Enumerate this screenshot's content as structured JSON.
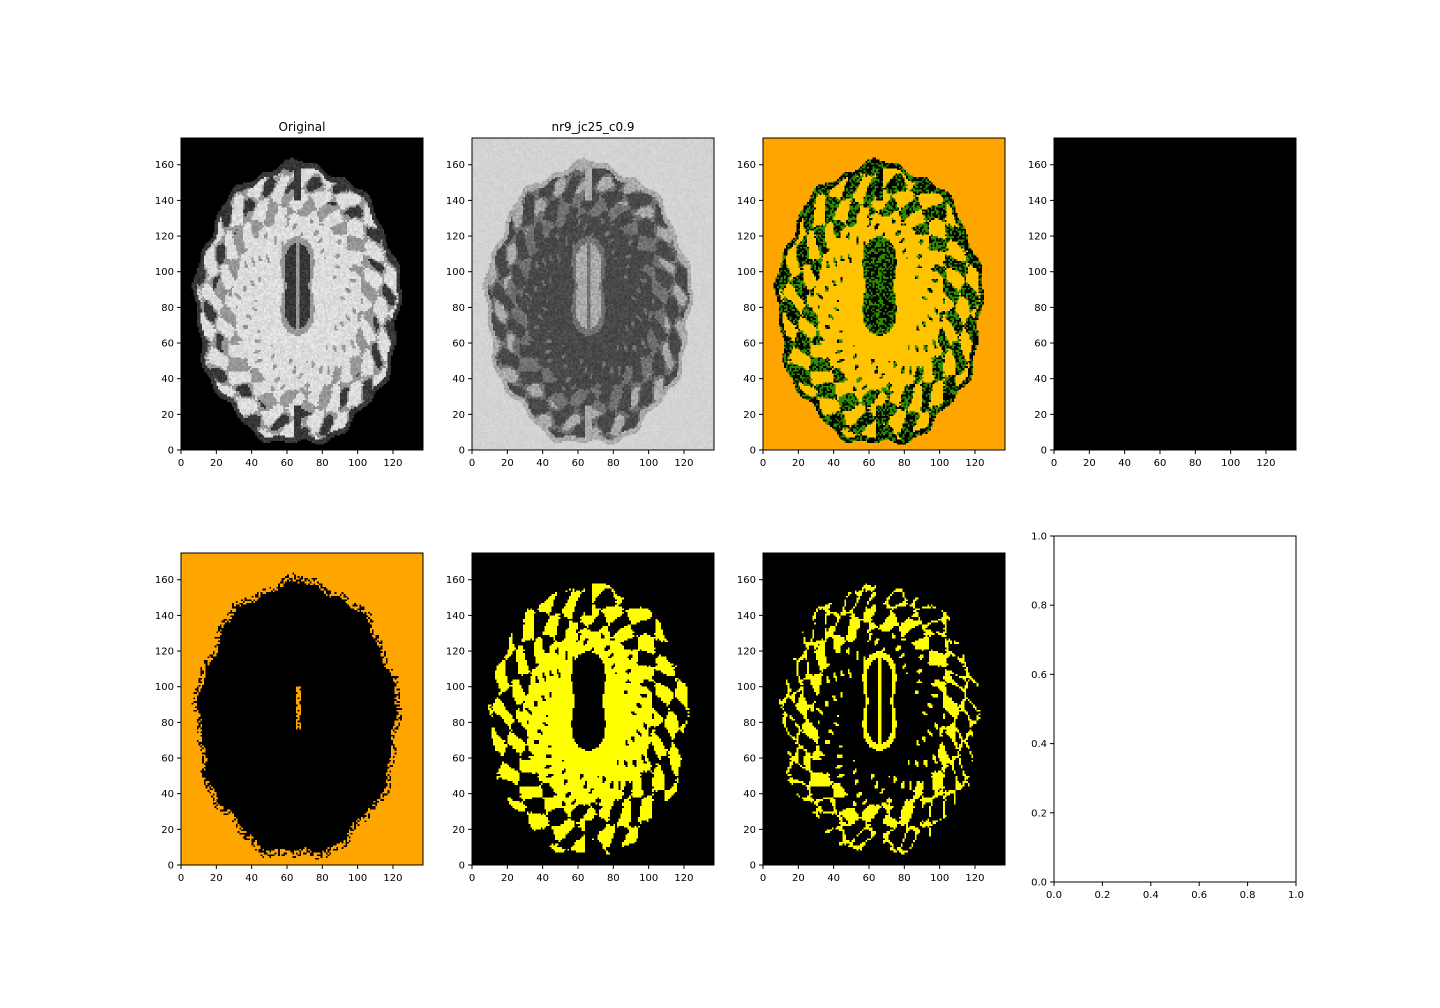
{
  "figure": {
    "background": "#ffffff"
  },
  "chart_data": [
    {
      "type": "heatmap",
      "title": "Original",
      "colormap": "gray",
      "content": "brain-t1",
      "xlim": [
        0,
        137
      ],
      "ylim": [
        0,
        175
      ],
      "xticks": [
        0,
        20,
        40,
        60,
        80,
        100,
        120
      ],
      "yticks": [
        0,
        20,
        40,
        60,
        80,
        100,
        120,
        140,
        160
      ]
    },
    {
      "type": "heatmap",
      "title": "nr9_jc25_c0.9",
      "colormap": "gray",
      "content": "bias-corrected",
      "xlim": [
        0,
        137
      ],
      "ylim": [
        0,
        175
      ],
      "xticks": [
        0,
        20,
        40,
        60,
        80,
        100,
        120
      ],
      "yticks": [
        0,
        20,
        40,
        60,
        80,
        100,
        120,
        140,
        160
      ]
    },
    {
      "type": "heatmap",
      "title": "",
      "colormap": "segmentation",
      "content": "segmentation",
      "colors": {
        "background": "#ffa500",
        "tissue": "#ffc300",
        "border": "#2e8b00",
        "dark": "#000000"
      },
      "xlim": [
        0,
        137
      ],
      "ylim": [
        0,
        175
      ],
      "xticks": [
        0,
        20,
        40,
        60,
        80,
        100,
        120
      ],
      "yticks": [
        0,
        20,
        40,
        60,
        80,
        100,
        120,
        140,
        160
      ]
    },
    {
      "type": "heatmap",
      "title": "",
      "colormap": "black",
      "content": "empty",
      "xlim": [
        0,
        137
      ],
      "ylim": [
        0,
        175
      ],
      "xticks": [
        0,
        20,
        40,
        60,
        80,
        100,
        120
      ],
      "yticks": [
        0,
        20,
        40,
        60,
        80,
        100,
        120,
        140,
        160
      ]
    },
    {
      "type": "heatmap",
      "title": "",
      "colormap": "orange-mask",
      "content": "csf-mask",
      "colors": {
        "on": "#ffa500",
        "off": "#000000"
      },
      "xlim": [
        0,
        137
      ],
      "ylim": [
        0,
        175
      ],
      "xticks": [
        0,
        20,
        40,
        60,
        80,
        100,
        120
      ],
      "yticks": [
        0,
        20,
        40,
        60,
        80,
        100,
        120,
        140,
        160
      ]
    },
    {
      "type": "heatmap",
      "title": "",
      "colormap": "yellow-mask",
      "content": "wm-mask",
      "colors": {
        "on": "#ffff00",
        "off": "#000000"
      },
      "xlim": [
        0,
        137
      ],
      "ylim": [
        0,
        175
      ],
      "xticks": [
        0,
        20,
        40,
        60,
        80,
        100,
        120
      ],
      "yticks": [
        0,
        20,
        40,
        60,
        80,
        100,
        120,
        140,
        160
      ]
    },
    {
      "type": "heatmap",
      "title": "",
      "colormap": "yellow-mask",
      "content": "gm-mask",
      "colors": {
        "on": "#ffff00",
        "off": "#000000"
      },
      "xlim": [
        0,
        137
      ],
      "ylim": [
        0,
        175
      ],
      "xticks": [
        0,
        20,
        40,
        60,
        80,
        100,
        120
      ],
      "yticks": [
        0,
        20,
        40,
        60,
        80,
        100,
        120,
        140,
        160
      ]
    },
    {
      "type": "scatter",
      "title": "",
      "content": "empty-axes",
      "xlim": [
        0,
        1
      ],
      "ylim": [
        0,
        1
      ],
      "xticks": [
        "0.0",
        "0.2",
        "0.4",
        "0.6",
        "0.8",
        "1.0"
      ],
      "yticks": [
        "0.0",
        "0.2",
        "0.4",
        "0.6",
        "0.8",
        "1.0"
      ],
      "series": []
    }
  ]
}
